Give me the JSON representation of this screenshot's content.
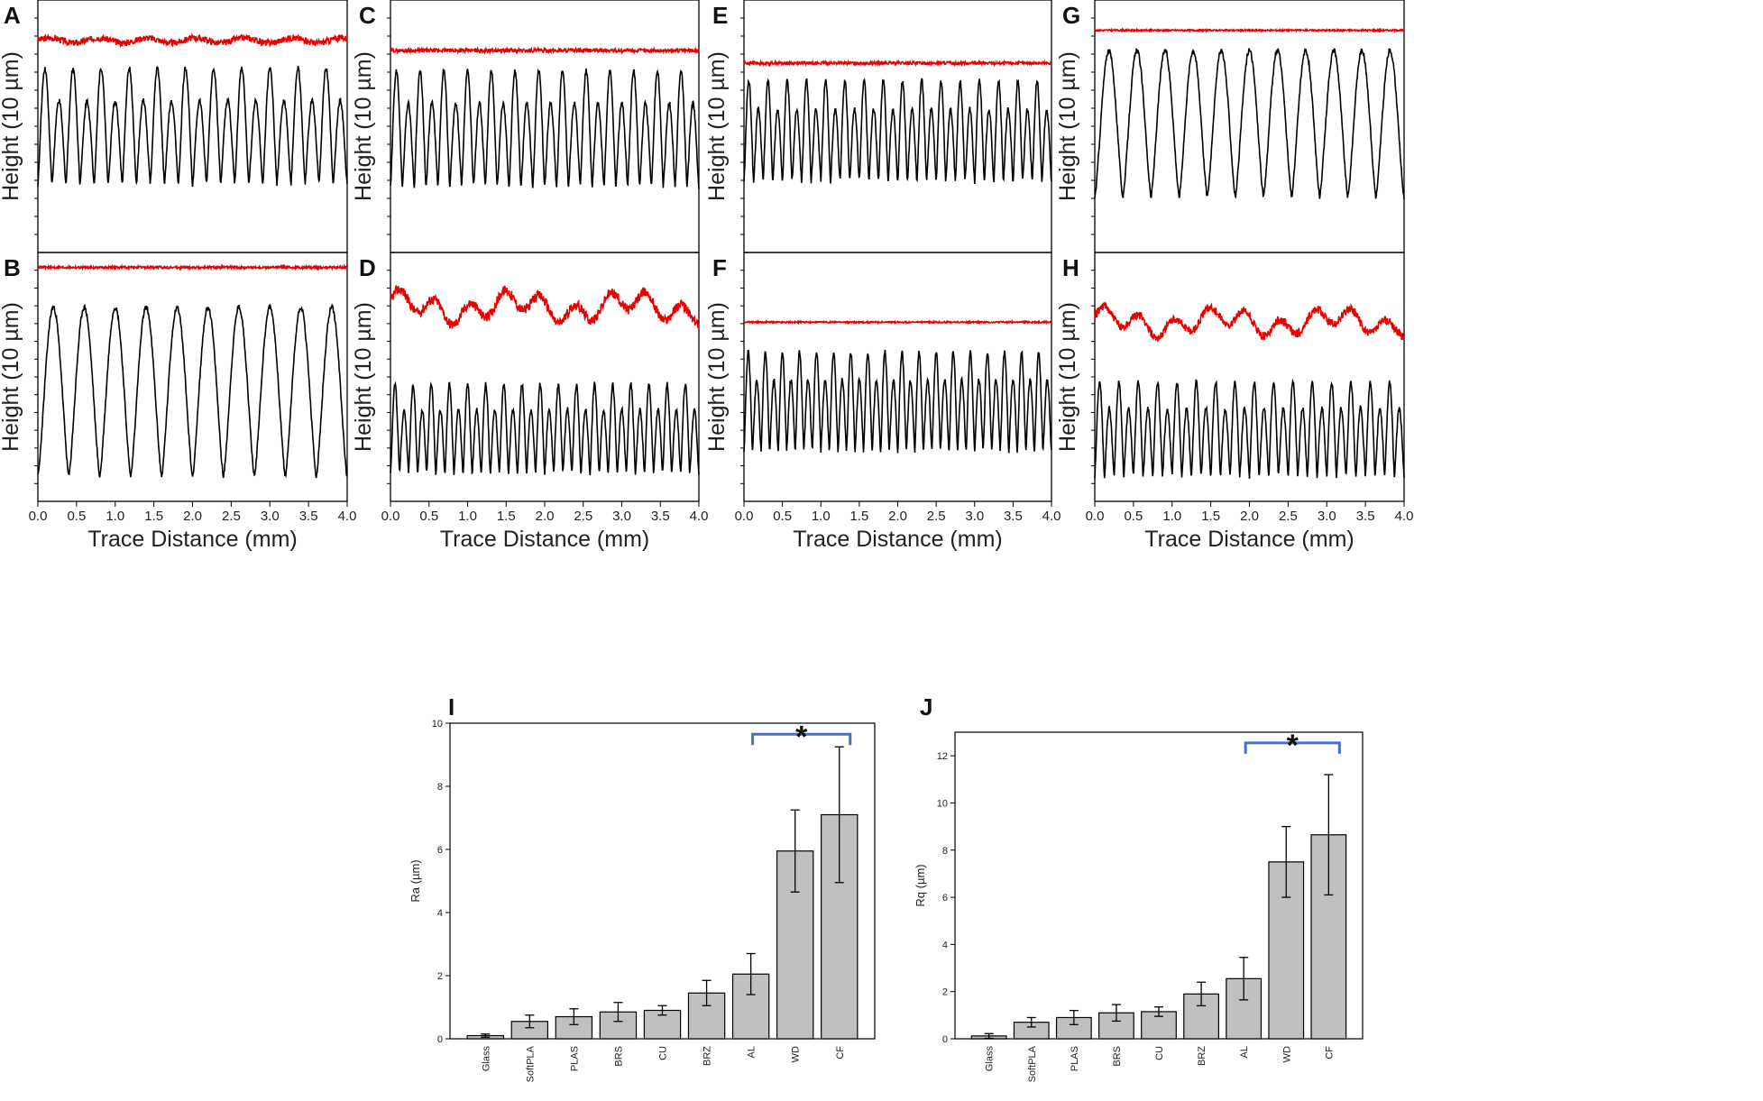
{
  "chart_data": [
    {
      "panel": "A",
      "type": "line",
      "ylabel": "Height (10 µm)",
      "xlabel": "",
      "xlim": [
        0,
        4
      ],
      "series": [
        {
          "name": "red trace",
          "color": "#e60000",
          "level": 0.84,
          "spread": 0.025,
          "kind": "flat-bumpy"
        },
        {
          "name": "black trace",
          "color": "#000000",
          "peaks": 11,
          "high": 0.73,
          "low": 0.27,
          "kind": "double-peak"
        }
      ]
    },
    {
      "panel": "B",
      "type": "line",
      "ylabel": "Height (10 µm)",
      "xlabel": "Trace Distance (mm)",
      "xlim": [
        0,
        4
      ],
      "xticks": [
        "0.0",
        "0.5",
        "1.0",
        "1.5",
        "2.0",
        "2.5",
        "3.0",
        "3.5",
        "4.0"
      ],
      "series": [
        {
          "name": "red trace",
          "color": "#e60000",
          "level": 0.94,
          "spread": 0.01,
          "kind": "flat"
        },
        {
          "name": "black trace",
          "color": "#000000",
          "peaks": 10,
          "high": 0.78,
          "low": 0.1,
          "kind": "single-peak"
        }
      ]
    },
    {
      "panel": "C",
      "type": "line",
      "ylabel": "Height (10 µm)",
      "xlabel": "",
      "xlim": [
        0,
        4
      ],
      "series": [
        {
          "name": "red trace",
          "color": "#e60000",
          "level": 0.8,
          "spread": 0.015,
          "kind": "flat"
        },
        {
          "name": "black trace",
          "color": "#000000",
          "peaks": 13,
          "high": 0.72,
          "low": 0.26,
          "kind": "double-peak"
        }
      ]
    },
    {
      "panel": "D",
      "type": "line",
      "ylabel": "Height (10 µm)",
      "xlabel": "Trace Distance (mm)",
      "xlim": [
        0,
        4
      ],
      "xticks": [
        "0.0",
        "0.5",
        "1.0",
        "1.5",
        "2.0",
        "2.5",
        "3.0",
        "3.5",
        "4.0"
      ],
      "series": [
        {
          "name": "red trace",
          "color": "#e60000",
          "level": 0.78,
          "spread": 0.08,
          "kind": "rough"
        },
        {
          "name": "black trace",
          "color": "#000000",
          "peaks": 17,
          "high": 0.47,
          "low": 0.11,
          "kind": "double-peak"
        }
      ]
    },
    {
      "panel": "E",
      "type": "line",
      "ylabel": "Height (10 µm)",
      "xlabel": "",
      "xlim": [
        0,
        4
      ],
      "series": [
        {
          "name": "red trace",
          "color": "#e60000",
          "level": 0.75,
          "spread": 0.012,
          "kind": "flat"
        },
        {
          "name": "black trace",
          "color": "#000000",
          "peaks": 16,
          "high": 0.68,
          "low": 0.28,
          "kind": "double-peak"
        }
      ]
    },
    {
      "panel": "F",
      "type": "line",
      "ylabel": "Height (10 µm)",
      "xlabel": "Trace Distance (mm)",
      "xlim": [
        0,
        4
      ],
      "xticks": [
        "0.0",
        "0.5",
        "1.0",
        "1.5",
        "2.0",
        "2.5",
        "3.0",
        "3.5",
        "4.0"
      ],
      "series": [
        {
          "name": "red trace",
          "color": "#e60000",
          "level": 0.72,
          "spread": 0.006,
          "kind": "flat"
        },
        {
          "name": "black trace",
          "color": "#000000",
          "peaks": 18,
          "high": 0.6,
          "low": 0.2,
          "kind": "double-peak"
        }
      ]
    },
    {
      "panel": "G",
      "type": "line",
      "ylabel": "Height (10 µm)",
      "xlabel": "",
      "xlim": [
        0,
        4
      ],
      "series": [
        {
          "name": "red trace",
          "color": "#e60000",
          "level": 0.88,
          "spread": 0.006,
          "kind": "flat"
        },
        {
          "name": "black trace",
          "color": "#000000",
          "peaks": 11,
          "high": 0.8,
          "low": 0.22,
          "kind": "single-peak"
        }
      ]
    },
    {
      "panel": "H",
      "type": "line",
      "ylabel": "Height (10 µm)",
      "xlabel": "Trace Distance (mm)",
      "xlim": [
        0,
        4
      ],
      "xticks": [
        "0.0",
        "0.5",
        "1.0",
        "1.5",
        "2.0",
        "2.5",
        "3.0",
        "3.5",
        "4.0"
      ],
      "series": [
        {
          "name": "red trace",
          "color": "#e60000",
          "level": 0.72,
          "spread": 0.07,
          "kind": "rough"
        },
        {
          "name": "black trace",
          "color": "#000000",
          "peaks": 16,
          "high": 0.48,
          "low": 0.1,
          "kind": "double-peak"
        }
      ]
    },
    {
      "panel": "I",
      "type": "bar",
      "ylabel": "Ra (µm)",
      "ylim": [
        0,
        10
      ],
      "yticks": [
        "0",
        "2",
        "4",
        "6",
        "8",
        "10"
      ],
      "categories": [
        "Glass",
        "SoftPLA",
        "PLAS",
        "BRS",
        "CU",
        "BRZ",
        "AL",
        "WD",
        "CF"
      ],
      "values": [
        0.1,
        0.55,
        0.7,
        0.85,
        0.9,
        1.45,
        2.05,
        5.95,
        7.1
      ],
      "errors": [
        0.05,
        0.2,
        0.25,
        0.3,
        0.15,
        0.4,
        0.65,
        1.3,
        2.15
      ],
      "significance": {
        "label": "*",
        "from": "AL",
        "to": "CF"
      }
    },
    {
      "panel": "J",
      "type": "bar",
      "ylabel": "Rq (µm)",
      "ylim": [
        0,
        13
      ],
      "yticks": [
        "0",
        "2",
        "4",
        "6",
        "8",
        "10",
        "12"
      ],
      "categories": [
        "Glass",
        "SoftPLA",
        "PLAS",
        "BRS",
        "CU",
        "BRZ",
        "AL",
        "WD",
        "CF"
      ],
      "values": [
        0.12,
        0.7,
        0.9,
        1.1,
        1.15,
        1.9,
        2.55,
        7.5,
        8.65
      ],
      "errors": [
        0.1,
        0.2,
        0.3,
        0.35,
        0.2,
        0.5,
        0.9,
        1.5,
        2.55
      ],
      "significance": {
        "label": "*",
        "from": "AL",
        "to": "CF"
      }
    }
  ],
  "colors": {
    "red_trace": "#e60000",
    "black_trace": "#000000",
    "bar_fill": "#c0c0c0",
    "bracket": "#4472c4"
  }
}
